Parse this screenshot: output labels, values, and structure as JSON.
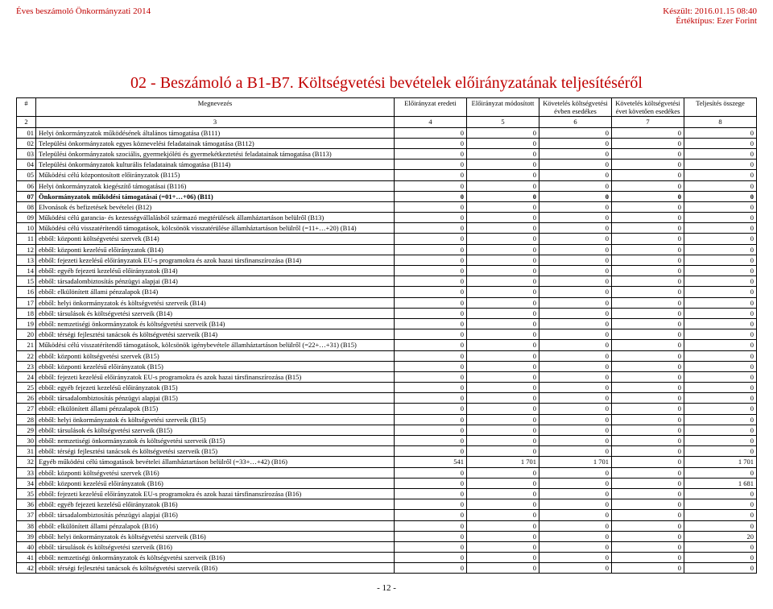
{
  "header": {
    "left": "Éves beszámoló Önkormányzati 2014",
    "right1": "Készült: 2016.01.15 08:40",
    "right2": "Értéktípus: Ezer Forint"
  },
  "title": "02 - Beszámoló a B1-B7. Költségvetési bevételek előirányzatának teljesítéséről",
  "columns": [
    "#",
    "Megnevezés",
    "Előirányzat eredeti",
    "Előirányzat módosított",
    "Követelés költségvetési évben esedékes",
    "Követelés költségvetési évet követően esedékes",
    "Teljesítés összege"
  ],
  "colnums": [
    "2",
    "3",
    "4",
    "5",
    "6",
    "7",
    "8"
  ],
  "rows": [
    {
      "n": "01",
      "name": "Helyi önkormányzatok működésének általános támogatása        (B111)",
      "v": [
        "0",
        "0",
        "0",
        "0",
        "0"
      ]
    },
    {
      "n": "02",
      "name": "Települési önkormányzatok egyes köznevelési feladatainak támogatása        (B112)",
      "v": [
        "0",
        "0",
        "0",
        "0",
        "0"
      ]
    },
    {
      "n": "03",
      "name": "Települési önkormányzatok szociális, gyermekjóléti és gyermekétkeztetési feladatainak támogatása        (B113)",
      "v": [
        "0",
        "0",
        "0",
        "0",
        "0"
      ]
    },
    {
      "n": "04",
      "name": "Települési önkormányzatok kulturális feladatainak támogatása        (B114)",
      "v": [
        "0",
        "0",
        "0",
        "0",
        "0"
      ]
    },
    {
      "n": "05",
      "name": "Működési célú központosított előirányzatok        (B115)",
      "v": [
        "0",
        "0",
        "0",
        "0",
        "0"
      ]
    },
    {
      "n": "06",
      "name": "Helyi önkormányzatok kiegészítő támogatásai        (B116)",
      "v": [
        "0",
        "0",
        "0",
        "0",
        "0"
      ]
    },
    {
      "n": "07",
      "name": "Önkormányzatok működési támogatásai (=01+…+06)        (B11)",
      "v": [
        "0",
        "0",
        "0",
        "0",
        "0"
      ],
      "bold": true
    },
    {
      "n": "08",
      "name": "Elvonások és befizetések bevételei        (B12)",
      "v": [
        "0",
        "0",
        "0",
        "0",
        "0"
      ]
    },
    {
      "n": "09",
      "name": "Működési célú garancia- és kezességvállalásból származó megtérülések államháztartáson belülről        (B13)",
      "v": [
        "0",
        "0",
        "0",
        "0",
        "0"
      ]
    },
    {
      "n": "10",
      "name": "Működési célú visszatérítendő támogatások, kölcsönök visszatérülése államháztartáson belülről (=11+…+20)        (B14)",
      "v": [
        "0",
        "0",
        "0",
        "0",
        "0"
      ]
    },
    {
      "n": "11",
      "name": "ebből: központi költségvetési szervek        (B14)",
      "v": [
        "0",
        "0",
        "0",
        "0",
        "0"
      ]
    },
    {
      "n": "12",
      "name": "ebből: központi kezelésű előirányzatok        (B14)",
      "v": [
        "0",
        "0",
        "0",
        "0",
        "0"
      ]
    },
    {
      "n": "13",
      "name": "ebből: fejezeti kezelésű előirányzatok EU-s programokra és azok hazai társfinanszírozása        (B14)",
      "v": [
        "0",
        "0",
        "0",
        "0",
        "0"
      ]
    },
    {
      "n": "14",
      "name": "ebből: egyéb fejezeti kezelésű előirányzatok        (B14)",
      "v": [
        "0",
        "0",
        "0",
        "0",
        "0"
      ]
    },
    {
      "n": "15",
      "name": "ebből: társadalombiztosítás pénzügyi alapjai        (B14)",
      "v": [
        "0",
        "0",
        "0",
        "0",
        "0"
      ]
    },
    {
      "n": "16",
      "name": "ebből: elkülönített állami pénzalapok        (B14)",
      "v": [
        "0",
        "0",
        "0",
        "0",
        "0"
      ]
    },
    {
      "n": "17",
      "name": "ebből: helyi önkormányzatok és költségvetési szerveik        (B14)",
      "v": [
        "0",
        "0",
        "0",
        "0",
        "0"
      ]
    },
    {
      "n": "18",
      "name": "ebből: társulások és költségvetési szerveik        (B14)",
      "v": [
        "0",
        "0",
        "0",
        "0",
        "0"
      ]
    },
    {
      "n": "19",
      "name": "ebből: nemzetiségi önkormányzatok és költségvetési szerveik        (B14)",
      "v": [
        "0",
        "0",
        "0",
        "0",
        "0"
      ]
    },
    {
      "n": "20",
      "name": "ebből: térségi fejlesztési tanácsok és költségvetési szerveik        (B14)",
      "v": [
        "0",
        "0",
        "0",
        "0",
        "0"
      ]
    },
    {
      "n": "21",
      "name": "Működési célú visszatérítendő támogatások, kölcsönök igénybevétele államháztartáson belülről (=22+…+31)        (B15)",
      "v": [
        "0",
        "0",
        "0",
        "0",
        "0"
      ]
    },
    {
      "n": "22",
      "name": "ebből: központi költségvetési szervek        (B15)",
      "v": [
        "0",
        "0",
        "0",
        "0",
        "0"
      ]
    },
    {
      "n": "23",
      "name": "ebből: központi kezelésű előirányzatok        (B15)",
      "v": [
        "0",
        "0",
        "0",
        "0",
        "0"
      ]
    },
    {
      "n": "24",
      "name": "ebből: fejezeti kezelésű előirányzatok EU-s programokra és azok hazai társfinanszírozása        (B15)",
      "v": [
        "0",
        "0",
        "0",
        "0",
        "0"
      ]
    },
    {
      "n": "25",
      "name": "ebből: egyéb fejezeti kezelésű előirányzatok        (B15)",
      "v": [
        "0",
        "0",
        "0",
        "0",
        "0"
      ]
    },
    {
      "n": "26",
      "name": "ebből: társadalombiztosítás pénzügyi alapjai        (B15)",
      "v": [
        "0",
        "0",
        "0",
        "0",
        "0"
      ]
    },
    {
      "n": "27",
      "name": "ebből: elkülönített állami pénzalapok        (B15)",
      "v": [
        "0",
        "0",
        "0",
        "0",
        "0"
      ]
    },
    {
      "n": "28",
      "name": "ebből: helyi önkormányzatok és költségvetési szerveik        (B15)",
      "v": [
        "0",
        "0",
        "0",
        "0",
        "0"
      ]
    },
    {
      "n": "29",
      "name": "ebből: társulások és költségvetési szerveik        (B15)",
      "v": [
        "0",
        "0",
        "0",
        "0",
        "0"
      ]
    },
    {
      "n": "30",
      "name": "ebből: nemzetiségi önkormányzatok és költségvetési szerveik        (B15)",
      "v": [
        "0",
        "0",
        "0",
        "0",
        "0"
      ]
    },
    {
      "n": "31",
      "name": "ebből: térségi fejlesztési tanácsok és költségvetési szerveik        (B15)",
      "v": [
        "0",
        "0",
        "0",
        "0",
        "0"
      ]
    },
    {
      "n": "32",
      "name": "Egyéb működési célú támogatások bevételei államháztartáson belülről (=33+…+42)        (B16)",
      "v": [
        "541",
        "1 701",
        "1 701",
        "0",
        "1 701"
      ]
    },
    {
      "n": "33",
      "name": "ebből: központi költségvetési szervek        (B16)",
      "v": [
        "0",
        "0",
        "0",
        "0",
        "0"
      ]
    },
    {
      "n": "34",
      "name": "ebből: központi kezelésű előirányzatok        (B16)",
      "v": [
        "0",
        "0",
        "0",
        "0",
        "1 681"
      ]
    },
    {
      "n": "35",
      "name": "ebből: fejezeti kezelésű előirányzatok EU-s programokra és azok hazai társfinanszírozása        (B16)",
      "v": [
        "0",
        "0",
        "0",
        "0",
        "0"
      ]
    },
    {
      "n": "36",
      "name": "ebből: egyéb fejezeti kezelésű előirányzatok        (B16)",
      "v": [
        "0",
        "0",
        "0",
        "0",
        "0"
      ]
    },
    {
      "n": "37",
      "name": "ebből: társadalombiztosítás pénzügyi alapjai        (B16)",
      "v": [
        "0",
        "0",
        "0",
        "0",
        "0"
      ]
    },
    {
      "n": "38",
      "name": "ebből: elkülönített állami pénzalapok        (B16)",
      "v": [
        "0",
        "0",
        "0",
        "0",
        "0"
      ]
    },
    {
      "n": "39",
      "name": "ebből: helyi önkormányzatok és költségvetési szerveik        (B16)",
      "v": [
        "0",
        "0",
        "0",
        "0",
        "20"
      ]
    },
    {
      "n": "40",
      "name": "ebből: társulások és költségvetési szerveik        (B16)",
      "v": [
        "0",
        "0",
        "0",
        "0",
        "0"
      ]
    },
    {
      "n": "41",
      "name": "ebből: nemzetiségi önkormányzatok és költségvetési szerveik        (B16)",
      "v": [
        "0",
        "0",
        "0",
        "0",
        "0"
      ]
    },
    {
      "n": "42",
      "name": "ebből: térségi fejlesztési tanácsok és költségvetési szerveik        (B16)",
      "v": [
        "0",
        "0",
        "0",
        "0",
        "0"
      ]
    }
  ],
  "pageNumber": "- 12 -"
}
